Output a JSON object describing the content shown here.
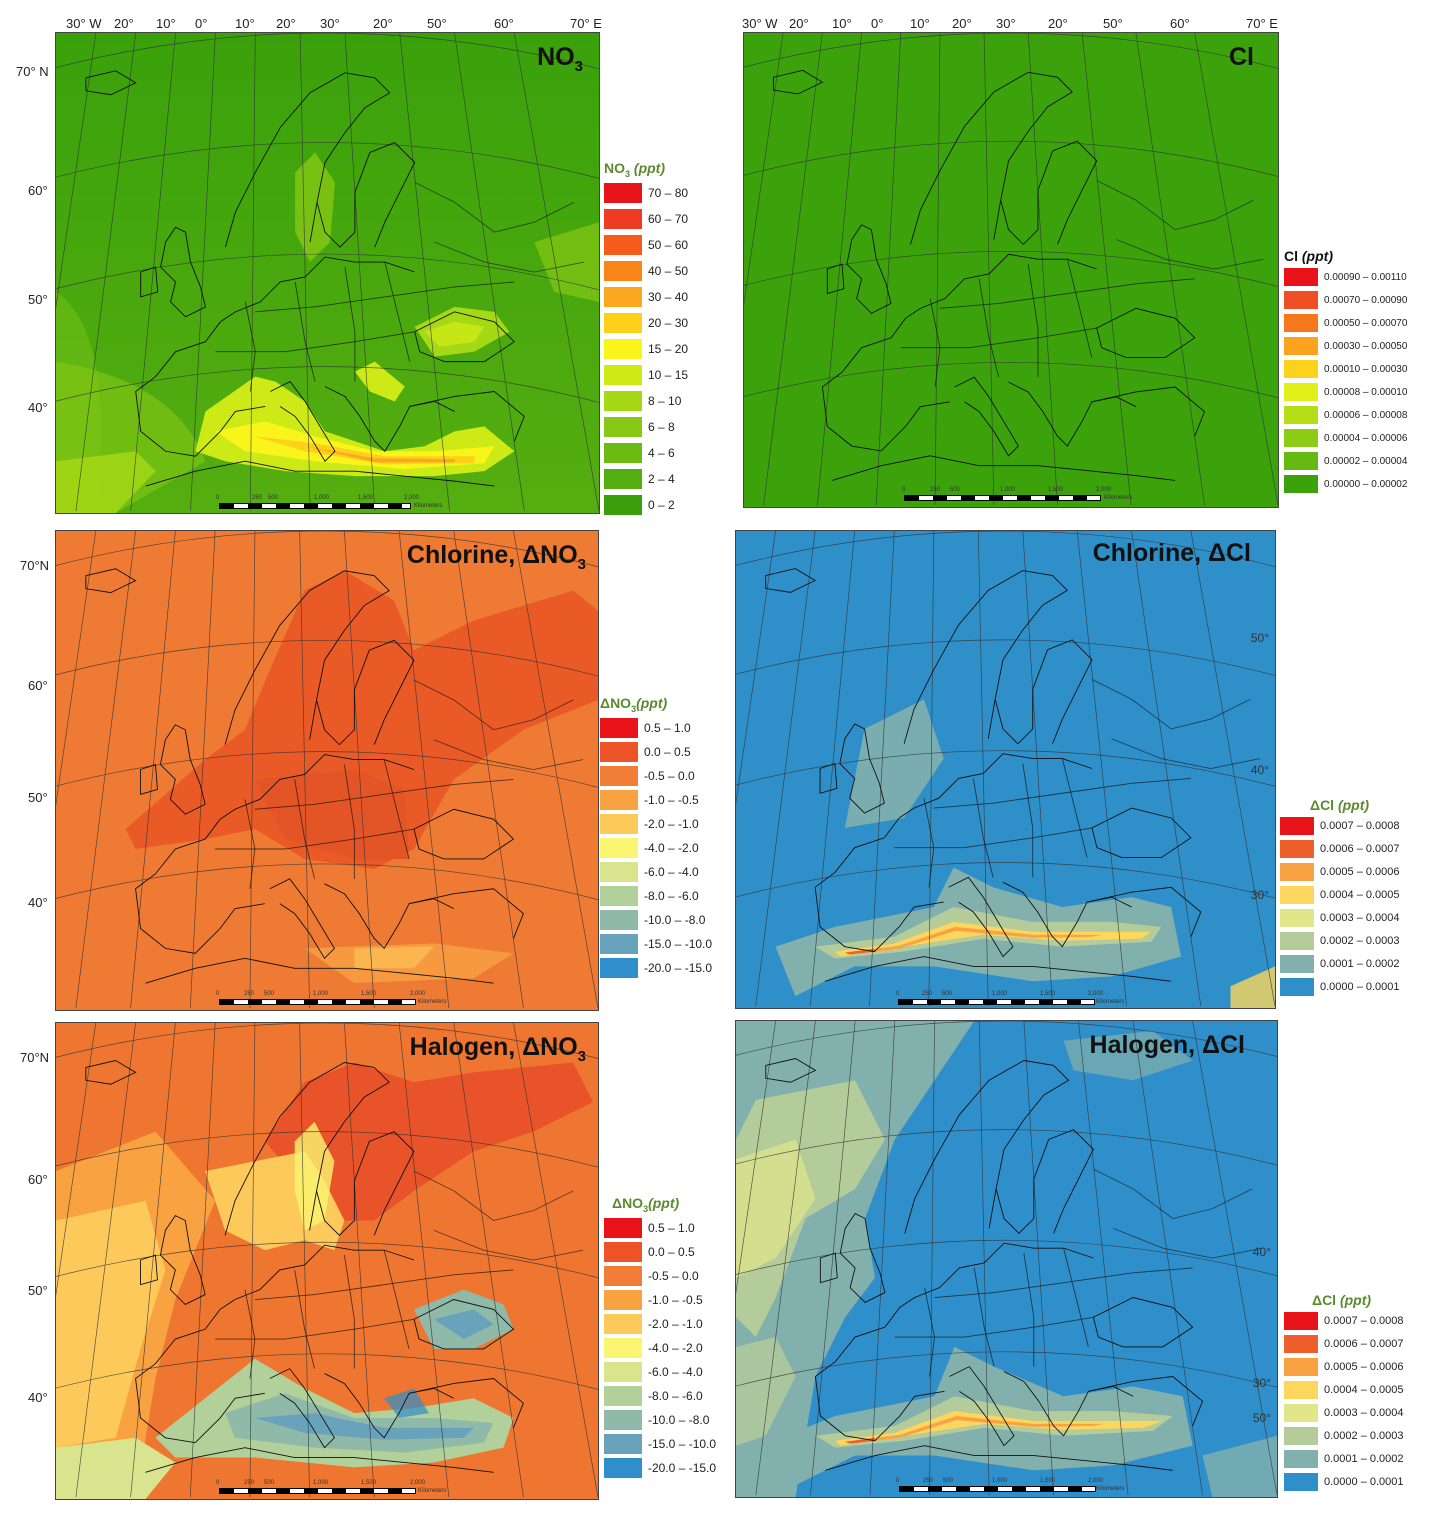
{
  "longitude_labels": [
    "30° W",
    "20°",
    "10°",
    "0°",
    "10°",
    "20°",
    "30°",
    "20°",
    "50°",
    "60°",
    "70° E"
  ],
  "latitude_labels": [
    "70° N",
    "60°",
    "50°",
    "40°"
  ],
  "latitude_labels_alt": [
    "70°N",
    "60°",
    "50°",
    "40°"
  ],
  "panels": [
    {
      "id": "no3",
      "title": "NO",
      "title_sub": "3",
      "background": "#3aa10b"
    },
    {
      "id": "cl",
      "title": "Cl",
      "title_sub": "",
      "background": "#3ba20c"
    },
    {
      "id": "chlorine-dno3",
      "title": "Chlorine, ΔNO",
      "title_sub": "3",
      "background": "#ef7a33"
    },
    {
      "id": "chlorine-dcl",
      "title": "Chlorine, ΔCl",
      "title_sub": "",
      "background": "#2e8fc9",
      "right_labels": [
        "50°",
        "40°",
        "30°"
      ]
    },
    {
      "id": "halogen-dno3",
      "title": "Halogen, ΔNO",
      "title_sub": "3",
      "background": "#ee7631"
    },
    {
      "id": "halogen-dcl",
      "title": "Halogen, ΔCl",
      "title_sub": "",
      "background": "#2f8fca",
      "right_labels": [
        "50°",
        "40°",
        "30°"
      ]
    }
  ],
  "scalebar": {
    "ticks": [
      "0",
      "250",
      "500",
      "1,000",
      "1,500",
      "2,000"
    ],
    "unit": "Kilometers"
  },
  "legends": {
    "no3": {
      "title": "NO",
      "title_sub": "3",
      "title_unit": " (ppt)",
      "entries": [
        {
          "label": "70 – 80",
          "color": "#e8141a"
        },
        {
          "label": "60 – 70",
          "color": "#ee3b22"
        },
        {
          "label": "50 – 60",
          "color": "#f55b1b"
        },
        {
          "label": "40 – 50",
          "color": "#f98418"
        },
        {
          "label": "30 – 40",
          "color": "#fba71f"
        },
        {
          "label": "20 – 30",
          "color": "#fdd01a"
        },
        {
          "label": "15 – 20",
          "color": "#f9f51b"
        },
        {
          "label": "10 – 15",
          "color": "#cdea17"
        },
        {
          "label": "8 – 10",
          "color": "#a6d915"
        },
        {
          "label": "6 – 8",
          "color": "#86c814"
        },
        {
          "label": "4 – 6",
          "color": "#6bbb12"
        },
        {
          "label": "2 – 4",
          "color": "#55ae10"
        },
        {
          "label": "0 – 2",
          "color": "#3a9f0b"
        }
      ]
    },
    "cl": {
      "title": "Cl",
      "title_unit": " (ppt)",
      "entries": [
        {
          "label": "0.00090 – 0.00110",
          "color": "#e8141a"
        },
        {
          "label": "0.00070 – 0.00090",
          "color": "#ef4f24"
        },
        {
          "label": "0.00050 – 0.00070",
          "color": "#f7771c"
        },
        {
          "label": "0.00030 – 0.00050",
          "color": "#fba21f"
        },
        {
          "label": "0.00010 – 0.00030",
          "color": "#fdd21b"
        },
        {
          "label": "0.00008 – 0.00010",
          "color": "#e2f01a"
        },
        {
          "label": "0.00006 – 0.00008",
          "color": "#b5de16"
        },
        {
          "label": "0.00004 – 0.00006",
          "color": "#8ccc14"
        },
        {
          "label": "0.00002 – 0.00004",
          "color": "#66b911"
        },
        {
          "label": "0.00000 – 0.00002",
          "color": "#3ba20c"
        }
      ]
    },
    "dno3": {
      "title": "ΔNO",
      "title_sub": "3",
      "title_unit": "(ppt)",
      "entries": [
        {
          "label": "0.5 – 1.0",
          "color": "#e8141a"
        },
        {
          "label": "0.0 – 0.5",
          "color": "#ec5427"
        },
        {
          "label": "-0.5 – 0.0",
          "color": "#f07d38"
        },
        {
          "label": "-1.0 – -0.5",
          "color": "#f9a242"
        },
        {
          "label": "-2.0 – -1.0",
          "color": "#fdc95b"
        },
        {
          "label": "-4.0 – -2.0",
          "color": "#fbf571"
        },
        {
          "label": "-6.0 – -4.0",
          "color": "#d9e48e"
        },
        {
          "label": "-8.0 – -6.0",
          "color": "#b2d09a"
        },
        {
          "label": "-10.0 – -8.0",
          "color": "#8fb9a8"
        },
        {
          "label": "-15.0 – -10.0",
          "color": "#69a3bb"
        },
        {
          "label": "-20.0 – -15.0",
          "color": "#2f8fcc"
        }
      ]
    },
    "dcl": {
      "title": "ΔCl",
      "title_unit": " (ppt)",
      "entries": [
        {
          "label": "0.0007 – 0.0008",
          "color": "#e8141a"
        },
        {
          "label": "0.0006 – 0.0007",
          "color": "#ef5f2c"
        },
        {
          "label": "0.0005 – 0.0006",
          "color": "#f9a243"
        },
        {
          "label": "0.0004 – 0.0005",
          "color": "#fdd65d"
        },
        {
          "label": "0.0003 – 0.0004",
          "color": "#e2e68a"
        },
        {
          "label": "0.0002 – 0.0003",
          "color": "#b3cc9a"
        },
        {
          "label": "0.0001 – 0.0002",
          "color": "#82b0ad"
        },
        {
          "label": "0.0000 – 0.0001",
          "color": "#2e8fc9"
        }
      ]
    }
  }
}
